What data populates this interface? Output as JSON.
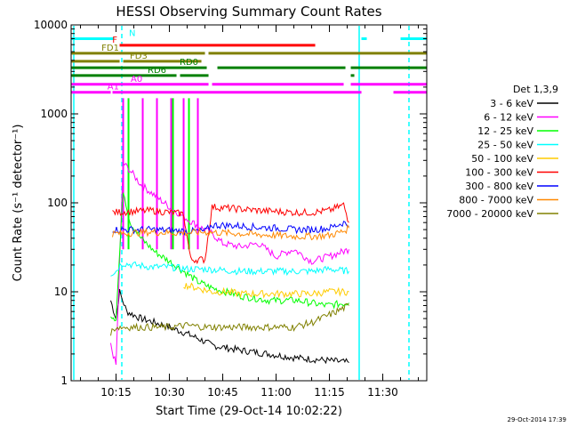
{
  "chart_data": {
    "type": "line",
    "title": "HESSI Observing Summary Count Rates",
    "xlabel": "Start Time (29-Oct-14 10:02:22)",
    "ylabel": "Count Rate (s⁻¹ detector⁻¹)",
    "y_scale": "log",
    "ylim": [
      1,
      10000
    ],
    "xlim": [
      "10:02:22",
      "11:42:22"
    ],
    "x_tick_labels": [
      "10:15",
      "10:30",
      "10:45",
      "11:00",
      "11:15",
      "11:30"
    ],
    "y_tick_labels": [
      "1",
      "10",
      "100",
      "1000",
      "10000"
    ],
    "legend_title": "Det 1,3,9",
    "legend_position": "right",
    "timestamp": "29-Oct-2014 17:39",
    "series": [
      {
        "name": "3 - 6 keV",
        "color": "#000000",
        "x": [
          "10:13:30",
          "10:15:00",
          "10:16:00",
          "10:18:00",
          "10:22:00",
          "10:26:00",
          "10:30:00",
          "10:34:00",
          "10:38:00",
          "10:42:00",
          "10:50:00",
          "10:58:00",
          "11:06:00",
          "11:14:00",
          "11:20:30"
        ],
        "y": [
          8,
          5,
          10,
          6,
          5,
          4.5,
          4,
          3.5,
          3,
          2.5,
          2.2,
          2,
          1.8,
          1.7,
          1.6
        ]
      },
      {
        "name": "6 - 12 keV",
        "color": "#ff00ff",
        "x": [
          "10:13:30",
          "10:15:00",
          "10:17:00",
          "10:19:00",
          "10:22:00",
          "10:26:00",
          "10:30:00",
          "10:34:00",
          "10:38:00",
          "10:42:00",
          "10:45:00",
          "10:50:00",
          "10:55:00",
          "11:00:00",
          "11:05:00",
          "11:10:00",
          "11:15:00",
          "11:20:30"
        ],
        "y": [
          2.5,
          1.5,
          280,
          230,
          160,
          120,
          90,
          70,
          55,
          45,
          35,
          32,
          35,
          25,
          30,
          22,
          25,
          30
        ]
      },
      {
        "name": "12 - 25 keV",
        "color": "#00ff00",
        "x": [
          "10:13:30",
          "10:15:00",
          "10:17:00",
          "10:19:00",
          "10:22:00",
          "10:26:00",
          "10:30:00",
          "10:34:00",
          "10:38:00",
          "10:42:00",
          "10:50:00",
          "10:58:00",
          "11:06:00",
          "11:14:00",
          "11:20:30"
        ],
        "y": [
          5.5,
          5,
          140,
          60,
          40,
          28,
          22,
          17,
          13,
          11,
          9,
          8,
          8,
          7,
          7.5
        ]
      },
      {
        "name": "25 - 50 keV",
        "color": "#00ffff",
        "x": [
          "10:13:30",
          "10:15:00",
          "10:16:30",
          "10:20:00",
          "10:25:00",
          "10:30:00",
          "10:35:00",
          "10:40:00",
          "10:45:00",
          "10:50:00",
          "10:55:00",
          "11:00:00",
          "11:05:00",
          "11:10:00",
          "11:15:00",
          "11:20:30"
        ],
        "y": [
          16,
          17,
          21,
          20,
          19,
          19,
          18,
          18,
          17.5,
          17,
          17,
          17,
          17,
          17,
          18,
          17
        ]
      },
      {
        "name": "50 - 100 keV",
        "color": "#ffcc00",
        "x": [
          "10:34:00",
          "10:38:00",
          "10:42:00",
          "10:46:00",
          "10:50:00",
          "10:55:00",
          "11:00:00",
          "11:05:00",
          "11:10:00",
          "11:15:00",
          "11:20:30"
        ],
        "y": [
          12,
          11,
          10,
          10,
          9.5,
          9.5,
          9.5,
          9.5,
          9.5,
          10,
          10
        ]
      },
      {
        "name": "100 - 300 keV",
        "color": "#ff0000",
        "x": [
          "10:14:00",
          "10:20:00",
          "10:25:00",
          "10:30:00",
          "10:34:00",
          "10:36:00",
          "10:40:00",
          "10:42:00",
          "10:45:00",
          "10:50:00",
          "10:55:00",
          "11:00:00",
          "11:05:00",
          "11:10:00",
          "11:15:00",
          "11:19:00",
          "11:20:30"
        ],
        "y": [
          78,
          80,
          82,
          78,
          75,
          23,
          23,
          90,
          88,
          85,
          82,
          80,
          78,
          78,
          82,
          95,
          60
        ]
      },
      {
        "name": "300 - 800 keV",
        "color": "#0000ff",
        "x": [
          "10:14:00",
          "10:20:00",
          "10:25:00",
          "10:30:00",
          "10:35:00",
          "10:40:00",
          "10:42:00",
          "10:45:00",
          "10:50:00",
          "10:55:00",
          "11:00:00",
          "11:05:00",
          "11:10:00",
          "11:15:00",
          "11:19:00",
          "11:20:30"
        ],
        "y": [
          50,
          50,
          50,
          49,
          48,
          48,
          56,
          56,
          55,
          53,
          52,
          50,
          50,
          52,
          60,
          55
        ]
      },
      {
        "name": "800 - 7000 keV",
        "color": "#ff8800",
        "x": [
          "10:14:00",
          "10:20:00",
          "10:25:00",
          "10:30:00",
          "10:35:00",
          "10:40:00",
          "10:45:00",
          "10:50:00",
          "10:55:00",
          "11:00:00",
          "11:05:00",
          "11:10:00",
          "11:15:00",
          "11:19:00",
          "11:20:30"
        ],
        "y": [
          45,
          46,
          47,
          46,
          46,
          47,
          46,
          45,
          44,
          43,
          42,
          42,
          43,
          48,
          52
        ]
      },
      {
        "name": "7000 - 20000 keV",
        "color": "#808000",
        "x": [
          "10:13:30",
          "10:15:00",
          "10:20:00",
          "10:25:00",
          "10:30:00",
          "10:35:00",
          "10:40:00",
          "10:45:00",
          "10:50:00",
          "10:55:00",
          "11:00:00",
          "11:05:00",
          "11:10:00",
          "11:15:00",
          "11:20:30"
        ],
        "y": [
          3.5,
          4,
          4,
          4,
          4,
          4.2,
          4,
          4,
          4,
          4,
          4,
          4,
          4.5,
          5.5,
          7
        ]
      }
    ],
    "flags": [
      {
        "label": "N",
        "color": "#00ffff",
        "y": 7000
      },
      {
        "label": "FD1",
        "color": "#808000",
        "y": 4800
      },
      {
        "label": "F",
        "color": "#ff0000",
        "y": 5900
      },
      {
        "label": "FD3",
        "color": "#808000",
        "y": 3900
      },
      {
        "label": "RD6",
        "color": "#008000",
        "y": 2700
      },
      {
        "label": "RD0",
        "color": "#008000",
        "y": 3300
      },
      {
        "label": "A1",
        "color": "#ff00ff",
        "y": 1750
      },
      {
        "label": "A0",
        "color": "#ff00ff",
        "y": 2150
      }
    ]
  }
}
